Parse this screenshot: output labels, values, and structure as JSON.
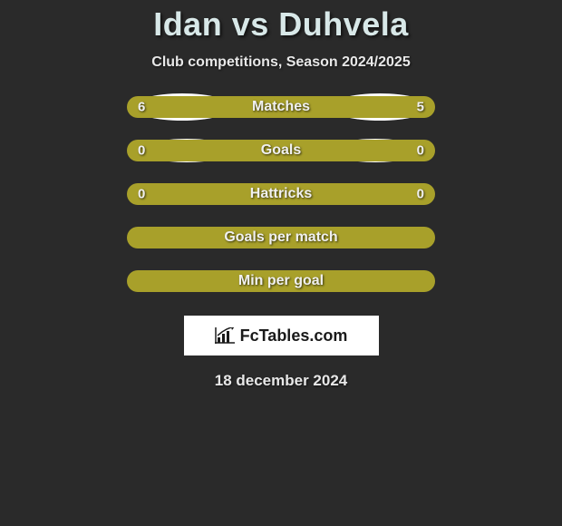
{
  "title": "Idan vs Duhvela",
  "subtitle": "Club competitions, Season 2024/2025",
  "rows": [
    {
      "label": "Matches",
      "left": "6",
      "right": "5",
      "leftFill": "#a8a02a",
      "rightFill": "#a8a02a",
      "leftPct": 54.5,
      "showEllipses": true,
      "ellipseVariant": 1
    },
    {
      "label": "Goals",
      "left": "0",
      "right": "0",
      "leftFill": "#a8a02a",
      "rightFill": "#a8a02a",
      "leftPct": 50,
      "showEllipses": true,
      "ellipseVariant": 2
    },
    {
      "label": "Hattricks",
      "left": "0",
      "right": "0",
      "leftFill": "#a8a02a",
      "rightFill": "#a8a02a",
      "leftPct": 50,
      "showEllipses": false
    },
    {
      "label": "Goals per match",
      "left": "",
      "right": "",
      "leftFill": "#a8a02a",
      "rightFill": "#a8a02a",
      "leftPct": 50,
      "showEllipses": false
    },
    {
      "label": "Min per goal",
      "left": "",
      "right": "",
      "leftFill": "#a8a02a",
      "rightFill": "#a8a02a",
      "leftPct": 50,
      "showEllipses": false
    }
  ],
  "brand": "FcTables.com",
  "date": "18 december 2024",
  "colors": {
    "background": "#2a2a2a",
    "barFill": "#a8a02a",
    "text": "#e8e8e8",
    "titleText": "#d8e8e8",
    "ellipse": "#ffffff",
    "brandBox": "#ffffff",
    "brandText": "#1a1a1a"
  },
  "layout": {
    "imageWidth": 620,
    "imageHeight": 580,
    "barWidth": 340,
    "barHeight": 24,
    "barRadius": 12,
    "rowGap": 24
  }
}
